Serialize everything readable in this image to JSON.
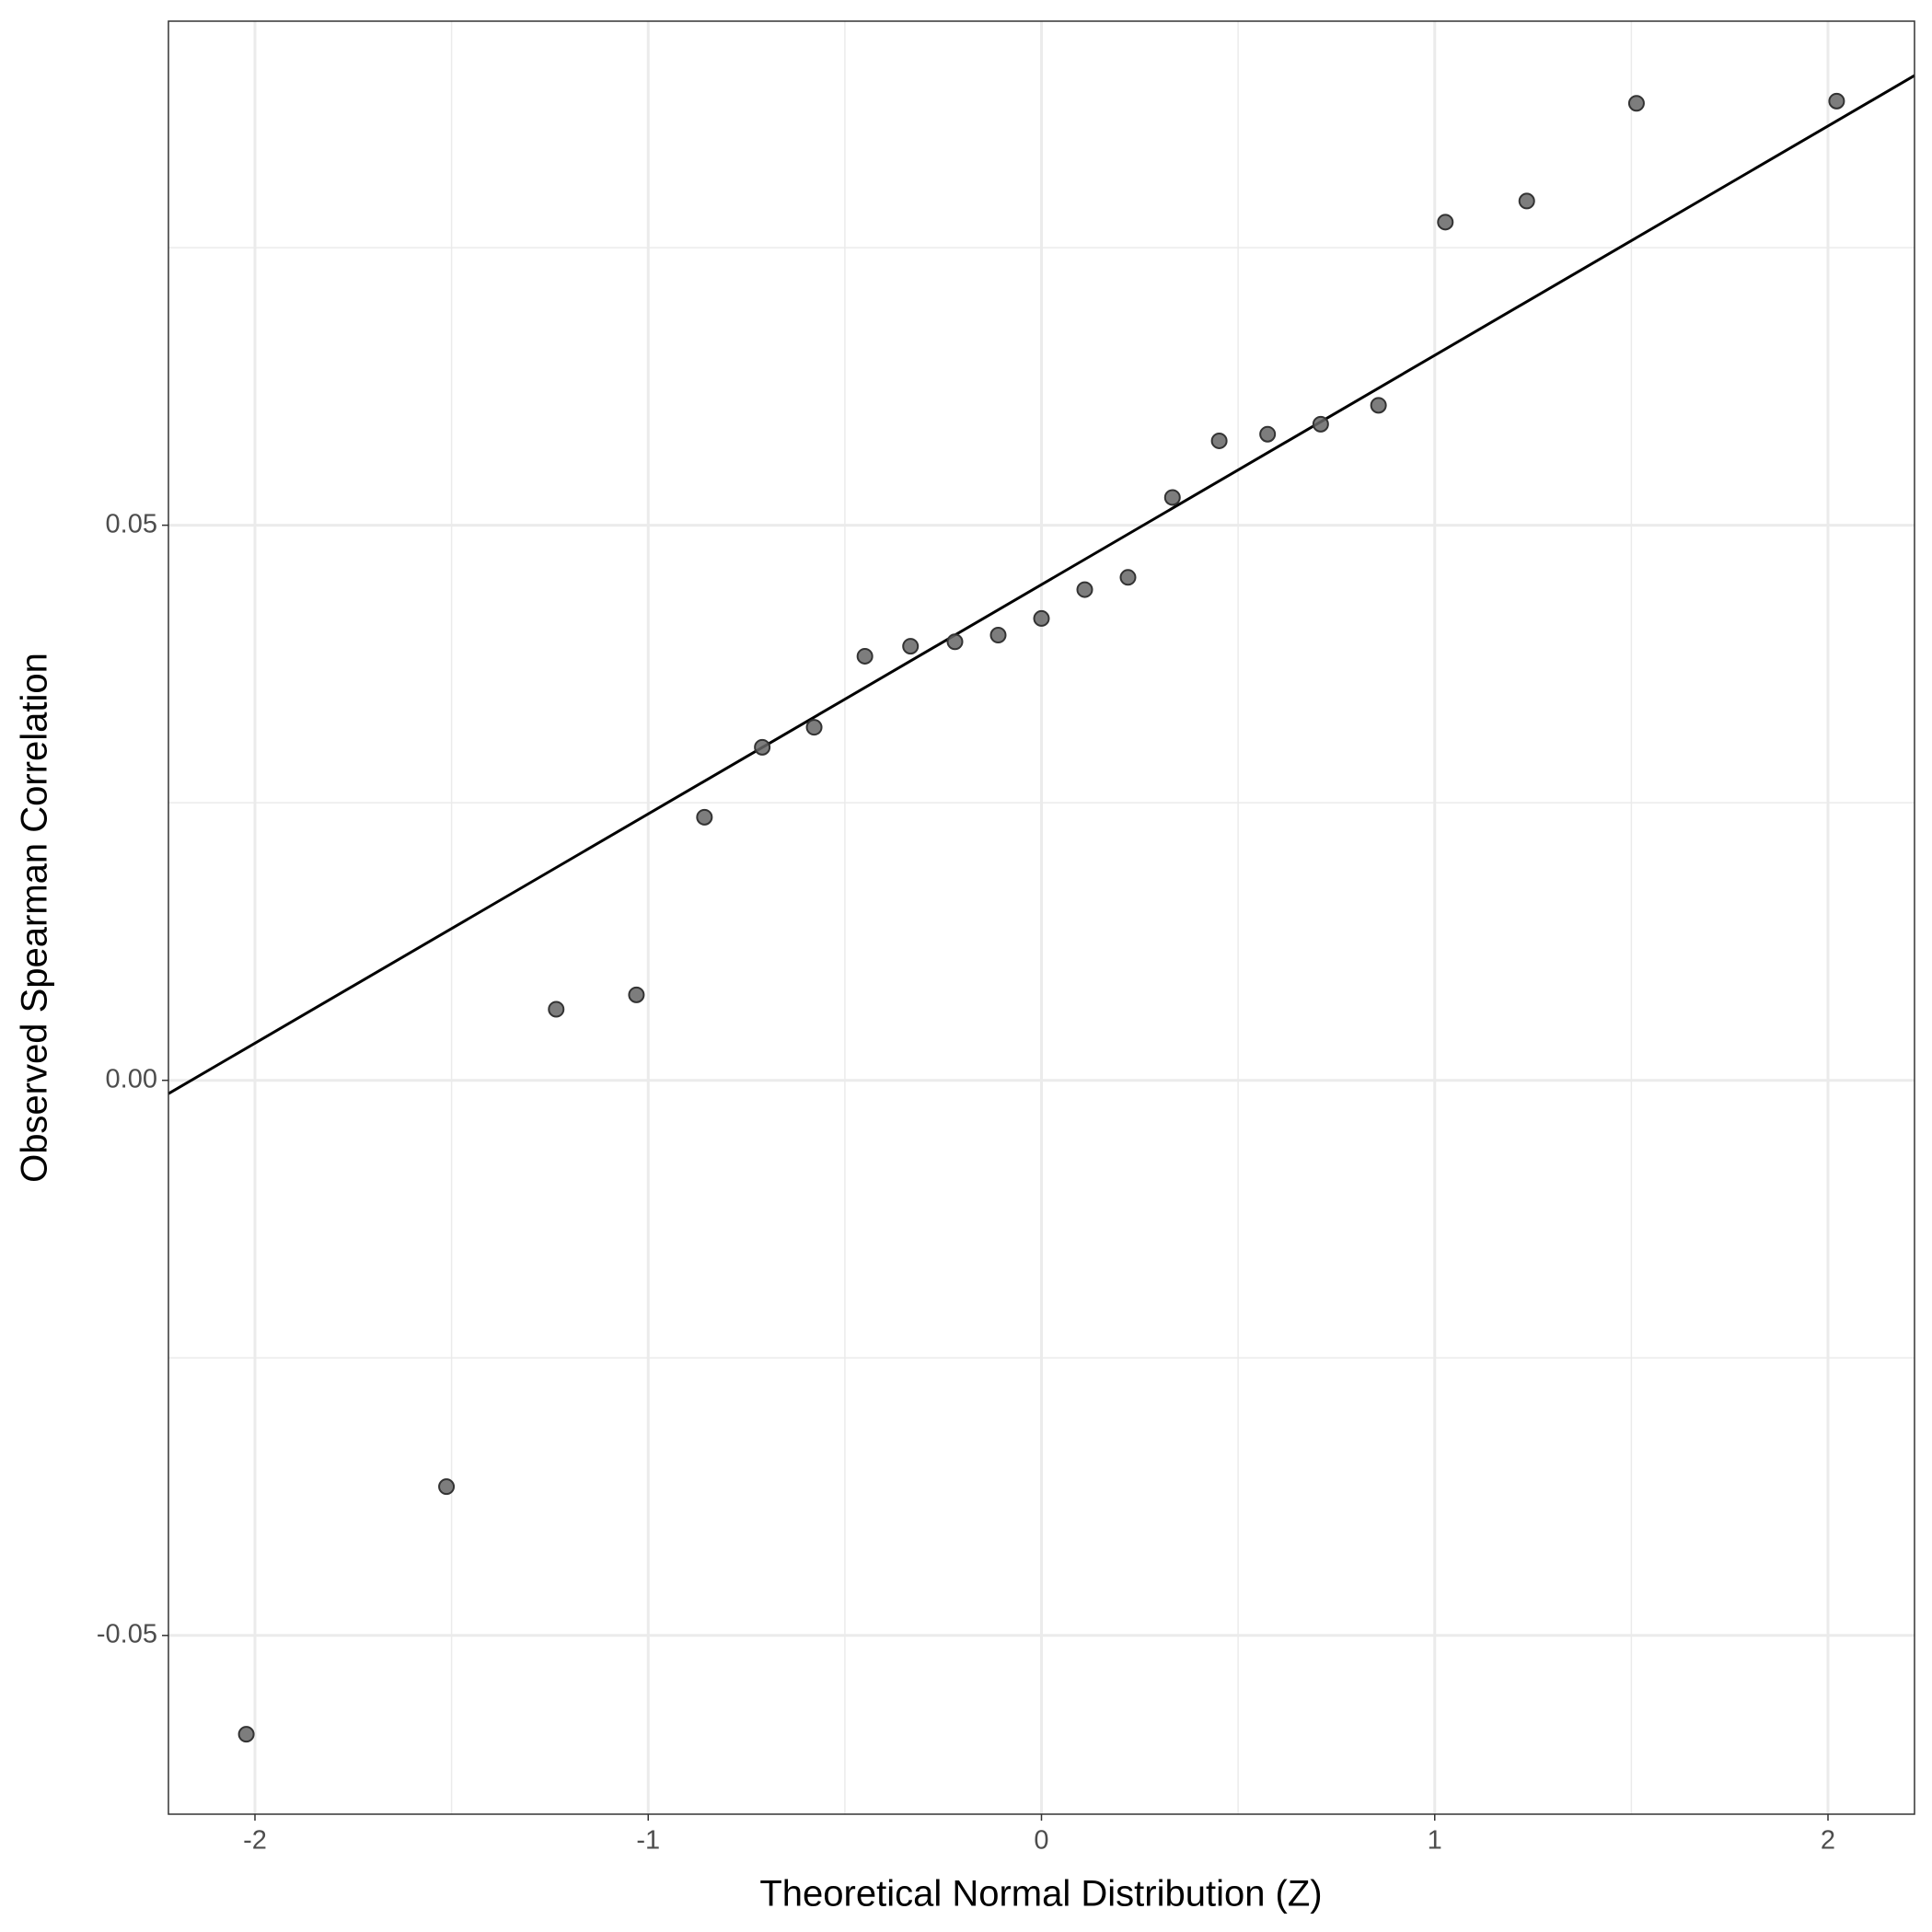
{
  "chart_data": {
    "type": "scatter",
    "x_label": "Theoretical Normal Distribution (Z)",
    "y_label": "Observed Spearman Correlation",
    "x": [
      -2.022,
      -1.513,
      -1.234,
      -1.03,
      -0.857,
      -0.71,
      -0.578,
      -0.449,
      -0.333,
      -0.22,
      -0.11,
      0,
      0.11,
      0.22,
      0.333,
      0.452,
      0.575,
      0.71,
      0.857,
      1.027,
      1.234,
      1.513,
      2.022
    ],
    "values": [
      -0.0589,
      -0.0366,
      0.0064,
      0.0077,
      0.0237,
      0.03,
      0.0318,
      0.0382,
      0.0391,
      0.0395,
      0.0401,
      0.0416,
      0.0442,
      0.0453,
      0.0525,
      0.0576,
      0.0582,
      0.0591,
      0.0608,
      0.0773,
      0.0792,
      0.088,
      0.0882
    ],
    "color": "#666666",
    "reference_line": {
      "x": [
        -2.22,
        2.22
      ],
      "y": [
        -0.0012,
        0.0905
      ],
      "color": "#000000"
    },
    "xlim": [
      -2.22,
      2.22
    ],
    "ylim": [
      -0.0661,
      0.0954
    ],
    "xticks": [
      -2,
      -1,
      0,
      1,
      2
    ],
    "yticks": [
      -0.05,
      {
        "value": 0,
        "label": "0.00"
      },
      0.05
    ],
    "x_minor_grid": [
      -1.5,
      -0.5,
      0.5,
      1.5
    ],
    "y_minor_grid": [
      -0.025,
      0.025,
      0.075
    ],
    "grid": true
  }
}
